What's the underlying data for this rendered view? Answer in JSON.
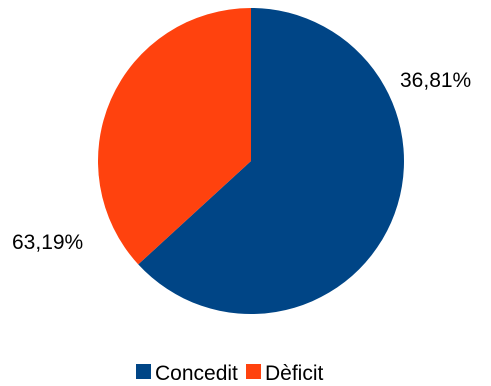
{
  "chart_data": {
    "type": "pie",
    "slices": [
      {
        "label": "Concedit",
        "value": 63.19,
        "display": "63,19%",
        "color": "#004586"
      },
      {
        "label": "Dèficit",
        "value": 36.81,
        "display": "36,81%",
        "color": "#ff420e"
      }
    ],
    "legend": {
      "placement": "bottom",
      "entries": [
        "Concedit",
        "Dèficit"
      ]
    },
    "start_angle": "12 o'clock, clockwise"
  }
}
